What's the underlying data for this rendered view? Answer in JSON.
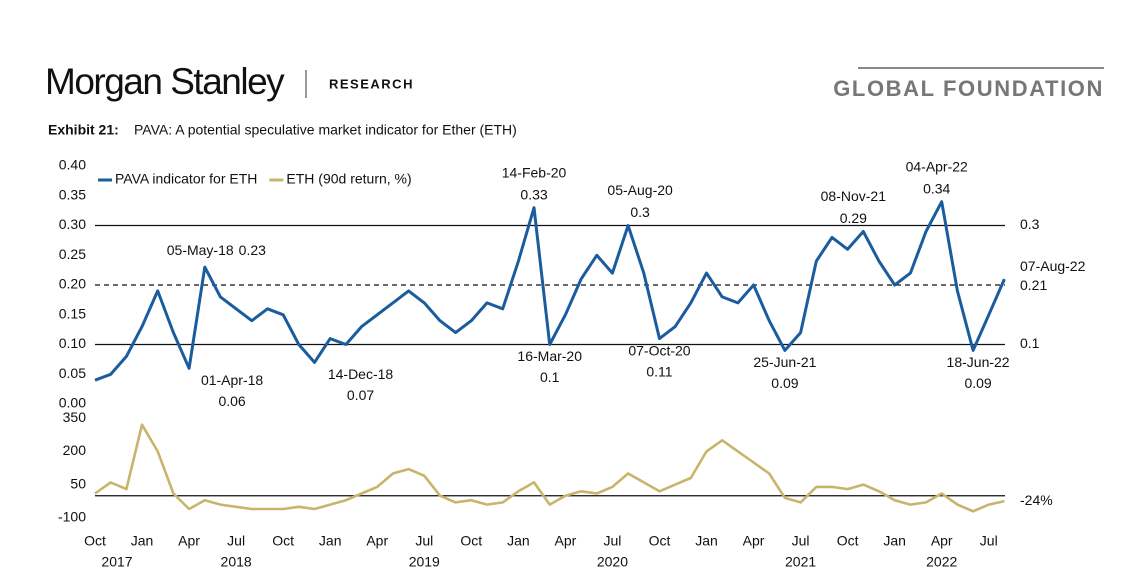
{
  "header": {
    "brand": "Morgan Stanley",
    "section": "RESEARCH",
    "series": "GLOBAL FOUNDATION"
  },
  "exhibit": {
    "number": "Exhibit 21:",
    "title": "PAVA: A potential speculative market indicator for Ether (ETH)"
  },
  "chart_data": {
    "type": "line",
    "legend": "upper left",
    "x": [
      "2017-10",
      "2017-11",
      "2017-12",
      "2018-01",
      "2018-02",
      "2018-03",
      "2018-04",
      "2018-05",
      "2018-06",
      "2018-07",
      "2018-08",
      "2018-09",
      "2018-10",
      "2018-11",
      "2018-12",
      "2019-01",
      "2019-02",
      "2019-03",
      "2019-04",
      "2019-05",
      "2019-06",
      "2019-07",
      "2019-08",
      "2019-09",
      "2019-10",
      "2019-11",
      "2019-12",
      "2020-01",
      "2020-02",
      "2020-03",
      "2020-04",
      "2020-05",
      "2020-06",
      "2020-07",
      "2020-08",
      "2020-09",
      "2020-10",
      "2020-11",
      "2020-12",
      "2021-01",
      "2021-02",
      "2021-03",
      "2021-04",
      "2021-05",
      "2021-06",
      "2021-07",
      "2021-08",
      "2021-09",
      "2021-10",
      "2021-11",
      "2021-12",
      "2022-01",
      "2022-02",
      "2022-03",
      "2022-04",
      "2022-05",
      "2022-06",
      "2022-07",
      "2022-08"
    ],
    "xticks": [
      {
        "value": "2017-10",
        "label": "Oct"
      },
      {
        "value": "2018-01",
        "label": "Jan"
      },
      {
        "value": "2018-04",
        "label": "Apr"
      },
      {
        "value": "2018-07",
        "label": "Jul"
      },
      {
        "value": "2018-10",
        "label": "Oct"
      },
      {
        "value": "2019-01",
        "label": "Jan"
      },
      {
        "value": "2019-04",
        "label": "Apr"
      },
      {
        "value": "2019-07",
        "label": "Jul"
      },
      {
        "value": "2019-10",
        "label": "Oct"
      },
      {
        "value": "2020-01",
        "label": "Jan"
      },
      {
        "value": "2020-04",
        "label": "Apr"
      },
      {
        "value": "2020-07",
        "label": "Jul"
      },
      {
        "value": "2020-10",
        "label": "Oct"
      },
      {
        "value": "2021-01",
        "label": "Jan"
      },
      {
        "value": "2021-04",
        "label": "Apr"
      },
      {
        "value": "2021-07",
        "label": "Jul"
      },
      {
        "value": "2021-10",
        "label": "Oct"
      },
      {
        "value": "2022-01",
        "label": "Jan"
      },
      {
        "value": "2022-04",
        "label": "Apr"
      },
      {
        "value": "2022-07",
        "label": "Jul"
      }
    ],
    "year_labels": [
      {
        "value": "2017-10",
        "label": "2017"
      },
      {
        "value": "2018-07",
        "label": "2018"
      },
      {
        "value": "2019-07",
        "label": "2019"
      },
      {
        "value": "2020-07",
        "label": "2020"
      },
      {
        "value": "2021-07",
        "label": "2021"
      },
      {
        "value": "2022-04",
        "label": "2022"
      }
    ],
    "panels": [
      {
        "ylim": [
          0,
          0.4
        ],
        "yticks": [
          {
            "value": 0.4,
            "label": "0.40"
          },
          {
            "value": 0.35,
            "label": "0.35"
          },
          {
            "value": 0.3,
            "label": "0.30"
          },
          {
            "value": 0.25,
            "label": "0.25"
          },
          {
            "value": 0.2,
            "label": "0.20"
          },
          {
            "value": 0.15,
            "label": "0.15"
          },
          {
            "value": 0.1,
            "label": "0.10"
          },
          {
            "value": 0.05,
            "label": "0.05"
          },
          {
            "value": 0,
            "label": "0.00"
          }
        ],
        "series": [
          {
            "name": "PAVA indicator for ETH",
            "color": "#1a5c9e",
            "values": [
              0.04,
              0.05,
              0.08,
              0.13,
              0.19,
              0.12,
              0.06,
              0.23,
              0.18,
              0.16,
              0.14,
              0.16,
              0.15,
              0.1,
              0.07,
              0.11,
              0.1,
              0.13,
              0.15,
              0.17,
              0.19,
              0.17,
              0.14,
              0.12,
              0.14,
              0.17,
              0.16,
              0.24,
              0.33,
              0.1,
              0.15,
              0.21,
              0.25,
              0.22,
              0.3,
              0.22,
              0.11,
              0.13,
              0.17,
              0.22,
              0.18,
              0.17,
              0.2,
              0.14,
              0.09,
              0.12,
              0.24,
              0.28,
              0.26,
              0.29,
              0.24,
              0.2,
              0.22,
              0.29,
              0.34,
              0.19,
              0.09,
              0.15,
              0.21
            ]
          }
        ],
        "hlines": [
          {
            "value": 0.3,
            "label": "0.3",
            "style": "solid"
          },
          {
            "value": 0.2,
            "style": "dashed"
          },
          {
            "value": 0.1,
            "label": "0.1",
            "style": "solid"
          }
        ],
        "annotations": [
          {
            "x": "2018-04",
            "date": "01-Apr-18",
            "value": 0.06,
            "position": "below"
          },
          {
            "x": "2018-05",
            "date": "05-May-18",
            "value": 0.23,
            "position": "inline"
          },
          {
            "x": "2018-12",
            "date": "14-Dec-18",
            "value": 0.07,
            "position": "below"
          },
          {
            "x": "2020-02",
            "date": "14-Feb-20",
            "value": 0.33,
            "position": "above"
          },
          {
            "x": "2020-03",
            "date": "16-Mar-20",
            "value": 0.1,
            "position": "below"
          },
          {
            "x": "2020-08",
            "date": "05-Aug-20",
            "value": 0.3,
            "position": "above"
          },
          {
            "x": "2020-10",
            "date": "07-Oct-20",
            "value": 0.11,
            "position": "below"
          },
          {
            "x": "2021-06",
            "date": "25-Jun-21",
            "value": 0.09,
            "position": "below"
          },
          {
            "x": "2021-11",
            "date": "08-Nov-21",
            "value": 0.29,
            "position": "above"
          },
          {
            "x": "2022-04",
            "date": "04-Apr-22",
            "value": 0.34,
            "position": "above"
          },
          {
            "x": "2022-06",
            "date": "18-Jun-22",
            "value": 0.09,
            "position": "below"
          }
        ],
        "end_label": {
          "date": "07-Aug-22",
          "value": 0.21
        }
      },
      {
        "ylim": [
          -150,
          400
        ],
        "yticks": [
          350,
          200,
          50,
          -100
        ],
        "series": [
          {
            "name": "ETH (90d return, %)",
            "color": "#c9b46c",
            "values": [
              10,
              60,
              30,
              320,
              200,
              10,
              -60,
              -20,
              -40,
              -50,
              -60,
              -60,
              -60,
              -50,
              -60,
              -40,
              -20,
              10,
              40,
              100,
              120,
              90,
              0,
              -30,
              -20,
              -40,
              -30,
              20,
              60,
              -40,
              0,
              20,
              10,
              40,
              100,
              60,
              20,
              50,
              80,
              200,
              250,
              200,
              150,
              100,
              -10,
              -30,
              40,
              40,
              30,
              50,
              20,
              -20,
              -40,
              -30,
              10,
              -40,
              -70,
              -40,
              -24
            ]
          }
        ],
        "hlines": [
          {
            "value": 0,
            "style": "solid"
          }
        ],
        "end_label": {
          "value": -24,
          "label": "-24%"
        }
      }
    ]
  }
}
